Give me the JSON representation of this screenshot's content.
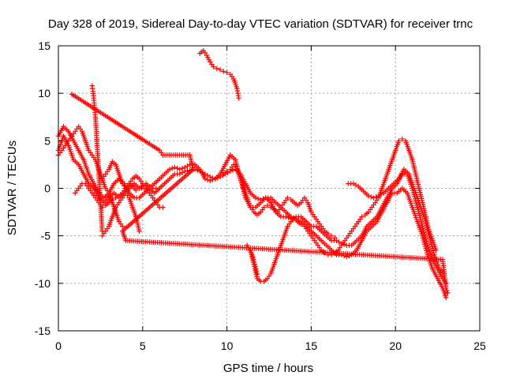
{
  "chart_data": {
    "type": "scatter",
    "title": "Day 328 of 2019, Sidereal Day-to-day VTEC variation (SDTVAR) for receiver trnc",
    "xlabel": "GPS time / hours",
    "ylabel": "SDTVAR / TECUs",
    "xlim": [
      0,
      25
    ],
    "ylim": [
      -15,
      15
    ],
    "xticks": [
      0,
      5,
      10,
      15,
      20,
      25
    ],
    "yticks": [
      -15,
      -10,
      -5,
      0,
      5,
      10,
      15
    ],
    "grid": true,
    "marker": "plus",
    "color": "#ff0000",
    "series": [
      {
        "name": "s1",
        "x": [
          0.0,
          0.3,
          0.6,
          0.9,
          1.2,
          1.5,
          1.8,
          2.1,
          2.4,
          2.7,
          3.0,
          3.3,
          3.6,
          3.9,
          4.2,
          4.5,
          4.8,
          5.1,
          5.4,
          5.7,
          6.0,
          6.3,
          6.6,
          6.9,
          7.2,
          7.5,
          7.8,
          8.1,
          8.4,
          8.7,
          9.0,
          9.3,
          9.6,
          9.9,
          10.2,
          10.5,
          10.8,
          11.1,
          11.4,
          11.7,
          12.0,
          12.3,
          12.6,
          12.9,
          13.2,
          13.5,
          13.8,
          14.1,
          14.4,
          14.7,
          15.0,
          15.3,
          15.6,
          15.9,
          16.2,
          16.5,
          16.8,
          17.1,
          17.4,
          17.7,
          18.0,
          18.3,
          18.6,
          18.9,
          19.2,
          19.5,
          19.8,
          20.1,
          20.4,
          20.7,
          21.0,
          21.3,
          21.6,
          21.9,
          22.2,
          22.5,
          22.8,
          23.0
        ],
        "y": [
          4.0,
          5.5,
          4.5,
          3.0,
          2.5,
          1.5,
          0.5,
          0.0,
          -1.0,
          -1.5,
          -1.0,
          -0.5,
          -1.0,
          -0.5,
          0.0,
          0.5,
          0.0,
          0.0,
          0.0,
          -0.5,
          0.0,
          0.5,
          1.0,
          1.5,
          1.5,
          1.8,
          1.9,
          2.0,
          1.8,
          1.5,
          1.2,
          1.0,
          1.2,
          1.5,
          1.8,
          2.0,
          1.5,
          0.5,
          -0.5,
          -1.0,
          -1.2,
          -1.0,
          -1.0,
          -1.5,
          -2.0,
          -2.5,
          -3.0,
          -3.2,
          -3.5,
          -4.0,
          -4.5,
          -5.0,
          -5.5,
          -6.0,
          -6.5,
          -7.0,
          -7.0,
          -7.2,
          -7.0,
          -6.5,
          -5.5,
          -4.5,
          -4.0,
          -3.5,
          -2.5,
          -1.5,
          -0.5,
          -0.5,
          0.0,
          -0.5,
          -2.0,
          -3.5,
          -5.0,
          -7.0,
          -8.5,
          -9.5,
          -10.5,
          -11.5
        ]
      },
      {
        "name": "s2",
        "x": [
          0.0,
          0.3,
          0.6,
          0.9,
          1.2,
          1.5,
          1.8,
          2.1,
          2.4,
          2.7,
          3.0,
          3.3,
          3.6,
          3.9,
          4.2,
          4.5,
          4.8,
          5.1,
          5.4,
          5.7,
          6.0,
          6.3,
          6.6,
          6.9,
          7.2,
          7.5,
          7.8,
          8.1,
          8.4,
          8.7,
          9.0,
          9.3,
          9.6,
          9.9,
          10.2,
          10.5,
          10.8,
          11.1,
          11.4,
          11.7,
          12.0,
          12.3,
          12.6,
          12.9,
          13.2,
          13.5,
          13.8,
          14.1,
          14.4,
          14.7,
          15.0,
          15.3,
          15.6,
          15.9,
          16.2,
          16.5,
          16.8,
          17.1,
          17.4,
          17.7,
          18.0,
          18.3,
          18.6,
          18.9,
          19.2,
          19.5,
          19.8,
          20.1,
          20.4,
          20.7,
          21.0,
          21.3,
          21.6,
          21.9,
          22.2,
          22.5,
          22.8,
          23.0
        ],
        "y": [
          5.5,
          6.5,
          6.0,
          5.0,
          4.0,
          3.0,
          1.5,
          0.5,
          -0.5,
          -1.0,
          -0.5,
          0.5,
          1.0,
          0.5,
          -0.5,
          -1.0,
          -1.0,
          -0.5,
          0.0,
          0.5,
          1.0,
          1.5,
          2.0,
          2.2,
          2.0,
          2.2,
          2.5,
          2.5,
          2.0,
          1.0,
          0.8,
          1.0,
          1.5,
          2.5,
          3.5,
          3.0,
          1.0,
          -1.0,
          -2.0,
          -2.0,
          -1.5,
          -1.0,
          -1.5,
          -2.5,
          -3.0,
          -3.0,
          -3.2,
          -3.0,
          -3.0,
          -3.5,
          -4.0,
          -4.0,
          -4.5,
          -5.0,
          -5.5,
          -5.5,
          -5.8,
          -6.0,
          -6.0,
          -5.5,
          -5.0,
          -4.0,
          -3.5,
          -3.0,
          -2.0,
          -1.0,
          0.0,
          0.5,
          1.5,
          1.5,
          0.0,
          -2.0,
          -4.0,
          -6.0,
          -7.5,
          -8.5,
          -9.5,
          -10.0
        ]
      },
      {
        "name": "s3",
        "x": [
          11.4,
          11.6,
          11.8,
          12.0,
          12.2,
          12.4,
          12.6,
          12.8,
          13.0,
          13.2,
          13.4,
          13.6,
          13.8,
          14.0,
          14.2,
          14.4,
          14.6,
          14.8,
          15.0,
          15.2,
          15.4,
          15.6,
          15.8,
          16.0,
          16.2,
          16.4,
          16.6,
          16.8,
          17.0,
          17.2,
          17.4,
          17.6,
          17.8,
          18.0,
          18.2,
          18.4,
          18.6,
          18.8,
          19.0,
          19.2,
          19.4,
          19.6,
          19.8,
          20.0,
          20.2,
          20.4,
          20.6,
          20.8,
          21.0,
          21.2,
          21.4,
          21.6,
          21.8,
          22.0,
          22.2,
          22.4
        ],
        "y": [
          -6.5,
          -8.0,
          -9.5,
          -9.8,
          -9.8,
          -9.5,
          -9.0,
          -8.0,
          -7.0,
          -6.0,
          -5.0,
          -4.0,
          -3.5,
          -3.2,
          -3.5,
          -3.8,
          -4.0,
          -4.5,
          -5.0,
          -5.5,
          -6.0,
          -6.5,
          -6.8,
          -7.0,
          -7.0,
          -6.8,
          -6.5,
          -6.0,
          -5.5,
          -5.0,
          -4.5,
          -4.0,
          -3.5,
          -3.0,
          -2.8,
          -2.5,
          -2.0,
          -1.5,
          -1.0,
          0.0,
          1.0,
          2.0,
          3.0,
          4.0,
          5.0,
          5.2,
          5.0,
          4.0,
          3.0,
          1.5,
          0.0,
          -1.5,
          -3.0,
          -4.5,
          -5.5,
          -6.5
        ]
      },
      {
        "name": "s4",
        "x": [
          17.2,
          17.5,
          17.8,
          18.1,
          18.4,
          18.7,
          19.0,
          19.3,
          19.6,
          19.9,
          20.2,
          20.5,
          20.8,
          21.1,
          21.4,
          21.7,
          22.0,
          22.3,
          22.6,
          22.9
        ],
        "y": [
          0.5,
          0.5,
          0.2,
          -0.3,
          -0.8,
          -1.0,
          -0.8,
          -0.5,
          0.0,
          0.5,
          1.0,
          2.0,
          1.5,
          0.0,
          -1.5,
          -3.0,
          -5.0,
          -7.0,
          -8.5,
          -9.0
        ]
      },
      {
        "name": "s5",
        "x": [
          8.4,
          8.6,
          8.8,
          9.0,
          9.2,
          9.4,
          9.6,
          9.8,
          10.0,
          10.2,
          10.4,
          10.6,
          10.7
        ],
        "y": [
          14.2,
          14.5,
          14.0,
          13.3,
          12.8,
          12.6,
          12.5,
          12.3,
          12.2,
          12.0,
          11.5,
          10.5,
          9.5
        ]
      },
      {
        "name": "s6",
        "x": [
          2.0,
          2.05,
          2.1,
          2.15,
          2.2,
          2.25,
          2.3,
          2.35,
          2.4,
          2.45,
          2.5,
          2.55,
          2.6
        ],
        "y": [
          10.8,
          10.2,
          9.5,
          8.5,
          7.5,
          6.0,
          4.5,
          3.0,
          1.5,
          0.0,
          -1.5,
          -3.0,
          -4.5
        ]
      },
      {
        "name": "s7",
        "x": [
          2.6,
          2.8,
          3.0,
          3.2,
          3.4,
          3.6,
          3.8,
          4.0,
          4.2,
          4.4,
          4.6,
          4.8
        ],
        "y": [
          -5.0,
          -4.5,
          -4.0,
          -3.0,
          -2.0,
          -1.5,
          -1.0,
          -0.5,
          -1.0,
          -2.0,
          -3.0,
          -4.5
        ]
      },
      {
        "name": "s8",
        "x": [
          2.6,
          2.8,
          3.0,
          3.2,
          3.4,
          3.6,
          3.8,
          4.0,
          4.2,
          4.4,
          4.6,
          4.8,
          5.0,
          5.2,
          5.4,
          5.6,
          5.8,
          6.0,
          6.2
        ],
        "y": [
          1.0,
          1.5,
          2.0,
          2.8,
          2.5,
          1.5,
          0.5,
          0.0,
          0.5,
          1.0,
          1.3,
          1.0,
          0.5,
          0.0,
          -0.5,
          -1.0,
          -1.5,
          -2.0,
          -2.0
        ]
      },
      {
        "name": "s9",
        "x": [
          0.0,
          0.2,
          0.4,
          0.6,
          0.8,
          1.0,
          1.2,
          1.4,
          1.6,
          1.8,
          2.0,
          2.2,
          2.4,
          2.6,
          2.8,
          3.0,
          3.2,
          3.4,
          3.6,
          3.8
        ],
        "y": [
          3.5,
          4.0,
          4.5,
          5.0,
          5.5,
          6.0,
          6.5,
          6.0,
          5.0,
          4.0,
          3.5,
          3.0,
          2.0,
          1.0,
          0.0,
          -0.5,
          -1.5,
          -2.5,
          -3.5,
          -4.0
        ]
      },
      {
        "name": "s10",
        "x": [
          1.0,
          1.2,
          1.4,
          1.6,
          1.8,
          2.0,
          2.2,
          2.4,
          2.6,
          2.8,
          3.0,
          3.2,
          3.4,
          3.6,
          3.8,
          4.0,
          4.2,
          4.4,
          4.6,
          4.8,
          5.0,
          5.2,
          5.4,
          5.6,
          5.8,
          6.0
        ],
        "y": [
          -0.5,
          0.0,
          0.5,
          0.5,
          0.0,
          -0.5,
          -1.0,
          -1.5,
          -2.0,
          -1.8,
          -1.5,
          -1.2,
          -1.0,
          -0.8,
          -0.5,
          0.0,
          0.5,
          0.2,
          -0.2,
          0.0,
          0.3,
          0.5,
          0.2,
          0.0,
          0.0,
          0.0
        ]
      },
      {
        "name": "s11",
        "x": [
          9.8,
          10.0,
          10.2,
          10.4,
          10.6,
          10.8,
          11.0,
          11.2,
          11.4,
          11.6,
          11.8,
          12.0,
          12.2,
          12.4,
          12.6,
          12.8,
          13.0,
          13.2,
          13.4,
          13.6,
          13.8,
          14.0,
          14.2,
          14.4,
          14.6,
          14.8,
          15.0,
          15.2,
          15.4,
          15.6,
          15.8,
          16.0,
          16.2,
          16.4
        ],
        "y": [
          1.5,
          1.8,
          2.0,
          2.5,
          2.0,
          1.0,
          0.0,
          -1.0,
          -2.0,
          -2.5,
          -2.8,
          -2.5,
          -2.0,
          -1.8,
          -2.0,
          -2.2,
          -2.5,
          -2.0,
          -1.5,
          -1.0,
          -1.2,
          -1.5,
          -1.8,
          -1.5,
          -1.0,
          -1.5,
          -2.5,
          -3.0,
          -3.5,
          -4.0,
          -4.5,
          -4.8,
          -5.0,
          -5.2
        ]
      },
      {
        "name": "s12",
        "x": [
          11.2,
          11.35,
          11.5,
          11.65,
          11.8
        ],
        "y": [
          -6.0,
          -6.5,
          -7.0,
          -8.0,
          -9.0
        ]
      },
      {
        "name": "s13",
        "x": [
          0.8,
          6.0,
          6.2,
          7.8,
          8.0,
          3.8,
          4.0,
          22.8,
          22.9,
          23.0,
          23.1
        ],
        "y": [
          9.9,
          4.0,
          3.5,
          3.5,
          2.0,
          -4.5,
          -5.5,
          -7.5,
          -9.0,
          -10.5,
          -11.0
        ]
      }
    ]
  }
}
